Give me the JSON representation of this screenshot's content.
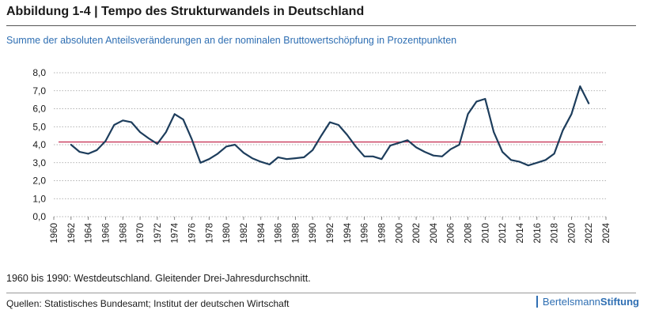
{
  "header": {
    "title": "Abbildung 1-4 | Tempo des Strukturwandels in Deutschland",
    "subtitle": "Summe der absoluten Anteilsveränderungen an der nominalen Bruttowertschöpfung in Prozentpunkten"
  },
  "footer": {
    "note": "1960 bis 1990: Westdeutschland. Gleitender Drei-Jahresdurchschnitt.",
    "source": "Quellen: Statistisches Bundesamt; Institut der deutschen Wirtschaft",
    "brand_regular": "Bertelsmann",
    "brand_bold": "Stiftung"
  },
  "colors": {
    "line": "#1d3d5c",
    "average": "#c8385a",
    "grid": "#9a9a9a",
    "accent": "#2f6fb3"
  },
  "chart_data": {
    "type": "line",
    "title": "Tempo des Strukturwandels in Deutschland",
    "xlabel": "",
    "ylabel": "",
    "xlim": [
      1960,
      2024
    ],
    "ylim": [
      0,
      8
    ],
    "y_ticks": [
      "0,0",
      "1,0",
      "2,0",
      "3,0",
      "4,0",
      "5,0",
      "6,0",
      "7,0",
      "8,0"
    ],
    "y_tick_values": [
      0,
      1,
      2,
      3,
      4,
      5,
      6,
      7,
      8
    ],
    "x_ticks": [
      "1960",
      "1962",
      "1964",
      "1966",
      "1968",
      "1970",
      "1972",
      "1974",
      "1976",
      "1978",
      "1980",
      "1982",
      "1984",
      "1986",
      "1988",
      "1990",
      "1992",
      "1994",
      "1996",
      "1998",
      "2000",
      "2002",
      "2004",
      "2006",
      "2008",
      "2010",
      "2012",
      "2014",
      "2016",
      "2018",
      "2020",
      "2022",
      "2024"
    ],
    "x_tick_values": [
      1960,
      1962,
      1964,
      1966,
      1968,
      1970,
      1972,
      1974,
      1976,
      1978,
      1980,
      1982,
      1984,
      1986,
      1988,
      1990,
      1992,
      1994,
      1996,
      1998,
      2000,
      2002,
      2004,
      2006,
      2008,
      2010,
      2012,
      2014,
      2016,
      2018,
      2020,
      2022,
      2024
    ],
    "average_line": 4.15,
    "series": [
      {
        "name": "Strukturwandel",
        "x": [
          1962,
          1963,
          1964,
          1965,
          1966,
          1967,
          1968,
          1969,
          1970,
          1971,
          1972,
          1973,
          1974,
          1975,
          1976,
          1977,
          1978,
          1979,
          1980,
          1981,
          1982,
          1983,
          1984,
          1985,
          1986,
          1987,
          1988,
          1989,
          1990,
          1991,
          1992,
          1993,
          1994,
          1995,
          1996,
          1997,
          1998,
          1999,
          2000,
          2001,
          2002,
          2003,
          2004,
          2005,
          2006,
          2007,
          2008,
          2009,
          2010,
          2011,
          2012,
          2013,
          2014,
          2015,
          2016,
          2017,
          2018,
          2019,
          2020,
          2021,
          2022
        ],
        "y": [
          4.0,
          3.6,
          3.5,
          3.7,
          4.2,
          5.1,
          5.35,
          5.25,
          4.7,
          4.35,
          4.05,
          4.7,
          5.7,
          5.4,
          4.3,
          3.0,
          3.2,
          3.5,
          3.9,
          4.0,
          3.55,
          3.25,
          3.05,
          2.9,
          3.3,
          3.2,
          3.25,
          3.3,
          3.7,
          4.5,
          5.25,
          5.1,
          4.55,
          3.9,
          3.35,
          3.35,
          3.2,
          3.95,
          4.1,
          4.25,
          3.85,
          3.6,
          3.4,
          3.35,
          3.75,
          4.0,
          5.7,
          6.4,
          6.55,
          4.7,
          3.6,
          3.15,
          3.05,
          2.85,
          3.0,
          3.15,
          3.5,
          4.8,
          5.7,
          7.25,
          6.3
        ]
      }
    ]
  }
}
